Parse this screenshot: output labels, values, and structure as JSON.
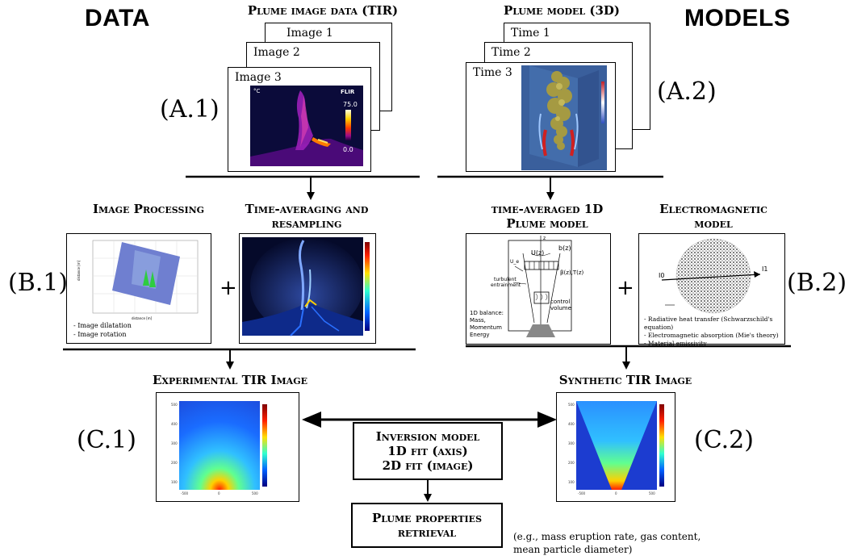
{
  "headings": {
    "data": "DATA",
    "models": "MODELS"
  },
  "section_a1": {
    "title": "Plume image data (TIR)",
    "code": "(A.1)",
    "frames": [
      "Image 1",
      "Image 2",
      "Image 3"
    ],
    "thermal": {
      "unit": "°C",
      "brand": "FLIR",
      "max": "75.0",
      "min": "0.0"
    }
  },
  "section_a2": {
    "title": "Plume model (3D)",
    "code": "(A.2)",
    "frames": [
      "Time 1",
      "Time 2",
      "Time 3"
    ]
  },
  "section_b1": {
    "code": "(B.1)",
    "left_title": "Image Processing",
    "right_title": "Time-averaging and resampling",
    "bullets": [
      "- Image dilatation",
      "- Image rotation"
    ]
  },
  "section_b2": {
    "code": "(B.2)",
    "left_title": "time-averaged 1D Plume model",
    "right_title": "Electromagnetic model",
    "plume_labels": {
      "turbulent": "turbulent entrainment",
      "balance": "1D balance: Mass, Momentum Energy",
      "control": "control volume",
      "u": "U(z)",
      "b": "b(z)",
      "beta": "β(z),T(z)",
      "ue": "U_e",
      "z": "z"
    },
    "em_labels": {
      "i0": "I0",
      "i1": "I1"
    },
    "bullets": [
      "- Radiative heat transfer (Schwarzschild's equation)",
      "- Electromagnetic absorption (Mie's theory)",
      "- Material emissivity"
    ]
  },
  "section_c1": {
    "code": "(C.1)",
    "title": "Experimental TIR Image"
  },
  "section_c2": {
    "code": "(C.2)",
    "title": "Synthetic TIR Image"
  },
  "inversion": {
    "line1": "Inversion model",
    "line2": "1D fit (axis)",
    "line3": "2D fit (image)"
  },
  "retrieval": {
    "line1": "Plume properties",
    "line2": "retrieval"
  },
  "note": {
    "line1": "(e.g., mass eruption rate, gas content,",
    "line2": "mean particle diameter)"
  },
  "plus_sign": "+"
}
